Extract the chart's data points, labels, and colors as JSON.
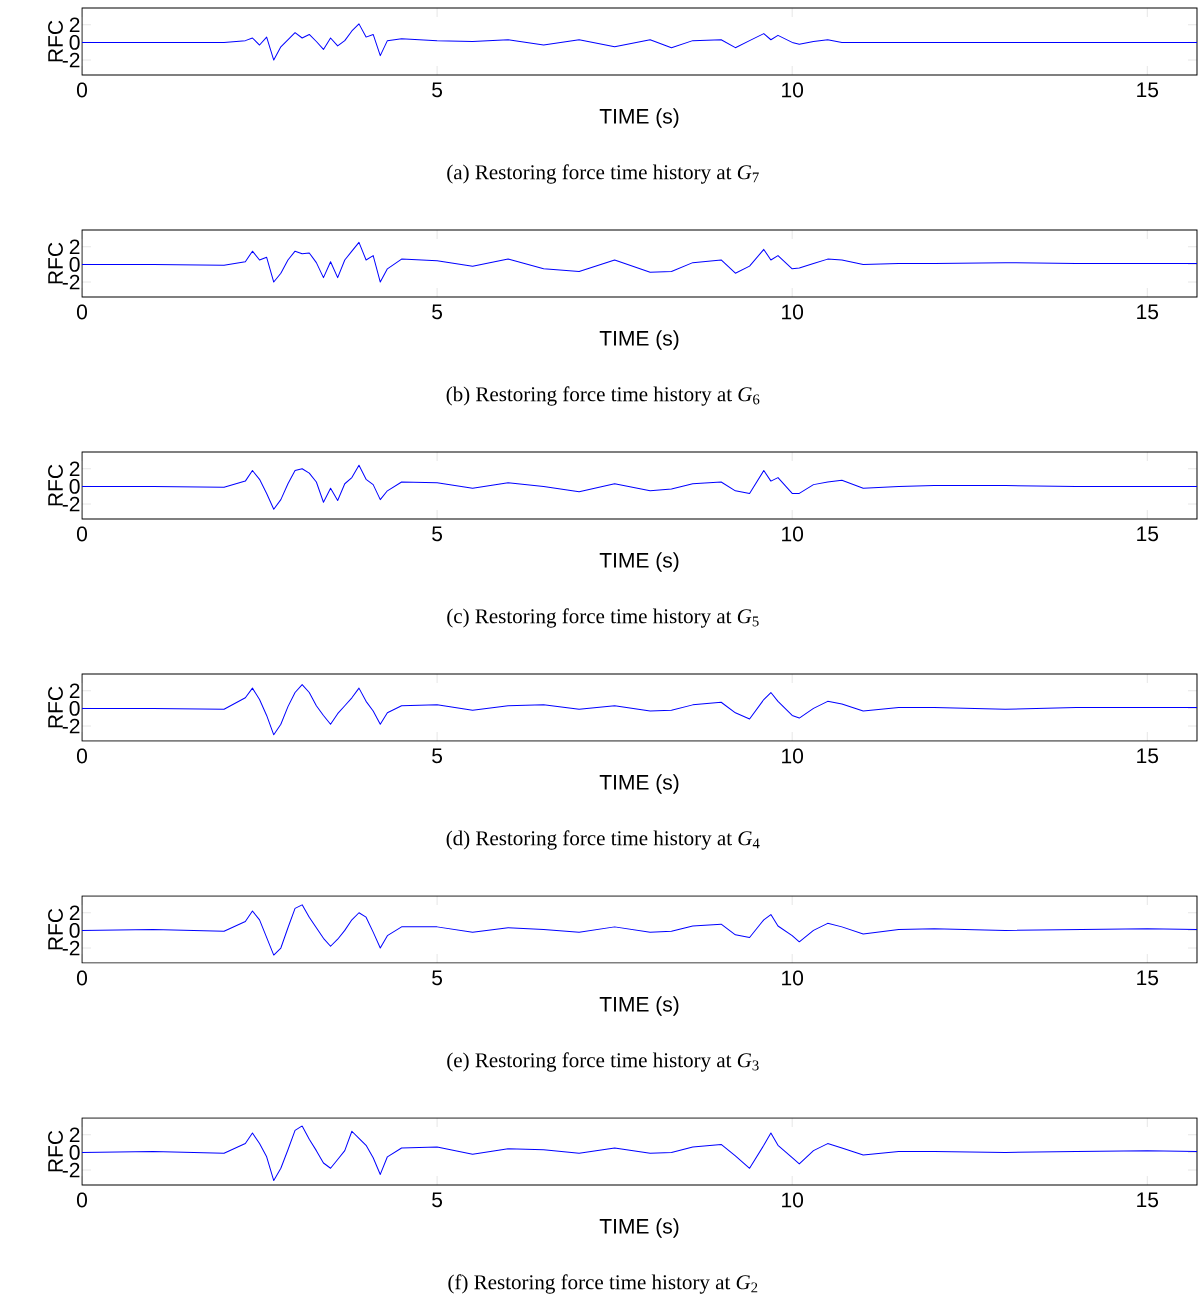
{
  "chart_data": [
    {
      "type": "line",
      "xlabel": "TIME (s)",
      "ylabel": "RFC",
      "annotations": [
        "(a) Restoring force time history at *G*$_{7}$"
      ],
      "xlim": [
        0,
        15.7
      ],
      "ylim": [
        -3.7,
        3.9
      ],
      "xticks": [
        0,
        5,
        10,
        15
      ],
      "yticks": [
        -2,
        0,
        2
      ],
      "x": [
        0,
        1,
        2,
        2.3,
        2.4,
        2.5,
        2.6,
        2.7,
        2.8,
        2.9,
        3.0,
        3.1,
        3.2,
        3.3,
        3.4,
        3.5,
        3.6,
        3.7,
        3.8,
        3.9,
        4.0,
        4.1,
        4.2,
        4.3,
        4.5,
        5,
        5.5,
        6,
        6.5,
        7,
        7.5,
        8,
        8.3,
        8.6,
        9,
        9.2,
        9.4,
        9.6,
        9.7,
        9.8,
        10,
        10.1,
        10.3,
        10.5,
        10.7,
        11,
        11.5,
        12,
        13,
        14,
        15,
        15.7
      ],
      "series": [
        {
          "color": "#0000ff",
          "values": [
            0,
            0,
            0,
            0.2,
            0.5,
            -0.3,
            0.6,
            -2.0,
            -0.5,
            0.3,
            1.1,
            0.5,
            0.9,
            0.1,
            -0.8,
            0.5,
            -0.4,
            0.2,
            1.3,
            2.1,
            0.6,
            0.9,
            -1.5,
            0.2,
            0.4,
            0.2,
            0.1,
            0.3,
            -0.3,
            0.3,
            -0.5,
            0.3,
            -0.6,
            0.2,
            0.3,
            -0.6,
            0.2,
            1.0,
            0.3,
            0.8,
            0,
            -0.2,
            0.1,
            0.3,
            0,
            0,
            0,
            0,
            0,
            0,
            0,
            0
          ]
        }
      ]
    },
    {
      "type": "line",
      "xlabel": "TIME (s)",
      "ylabel": "RFC",
      "annotations": [
        "(b) Restoring force time history at *G*$_{6}$"
      ],
      "xlim": [
        0,
        15.7
      ],
      "ylim": [
        -3.7,
        3.9
      ],
      "xticks": [
        0,
        5,
        10,
        15
      ],
      "yticks": [
        -2,
        0,
        2
      ],
      "x": [
        0,
        1,
        2,
        2.3,
        2.4,
        2.5,
        2.6,
        2.7,
        2.8,
        2.9,
        3.0,
        3.1,
        3.2,
        3.3,
        3.4,
        3.5,
        3.6,
        3.7,
        3.8,
        3.9,
        4.0,
        4.1,
        4.2,
        4.3,
        4.5,
        5,
        5.5,
        6,
        6.5,
        7,
        7.5,
        8,
        8.3,
        8.6,
        9,
        9.2,
        9.4,
        9.6,
        9.7,
        9.8,
        10,
        10.1,
        10.3,
        10.5,
        10.7,
        11,
        11.5,
        12,
        13,
        14,
        15,
        15.7
      ],
      "series": [
        {
          "color": "#0000ff",
          "values": [
            0,
            0,
            -0.1,
            0.3,
            1.5,
            0.5,
            0.8,
            -2.0,
            -1.0,
            0.5,
            1.5,
            1.2,
            1.3,
            0.2,
            -1.5,
            0.3,
            -1.5,
            0.5,
            1.5,
            2.5,
            0.5,
            1.0,
            -2.0,
            -0.5,
            0.6,
            0.4,
            -0.2,
            0.6,
            -0.5,
            -0.8,
            0.5,
            -0.9,
            -0.8,
            0.2,
            0.5,
            -1.0,
            -0.2,
            1.7,
            0.5,
            1.0,
            -0.5,
            -0.4,
            0.1,
            0.6,
            0.5,
            0.0,
            0.1,
            0.1,
            0.2,
            0.1,
            0.1,
            0.1
          ]
        }
      ]
    },
    {
      "type": "line",
      "xlabel": "TIME (s)",
      "ylabel": "RFC",
      "annotations": [
        "(c) Restoring force time history at *G*$_{5}$"
      ],
      "xlim": [
        0,
        15.7
      ],
      "ylim": [
        -3.7,
        3.9
      ],
      "xticks": [
        0,
        5,
        10,
        15
      ],
      "yticks": [
        -2,
        0,
        2
      ],
      "x": [
        0,
        1,
        2,
        2.3,
        2.4,
        2.5,
        2.6,
        2.7,
        2.8,
        2.9,
        3.0,
        3.1,
        3.2,
        3.3,
        3.4,
        3.5,
        3.6,
        3.7,
        3.8,
        3.9,
        4.0,
        4.1,
        4.2,
        4.3,
        4.5,
        5,
        5.5,
        6,
        6.5,
        7,
        7.5,
        8,
        8.3,
        8.6,
        9,
        9.2,
        9.4,
        9.6,
        9.7,
        9.8,
        10,
        10.1,
        10.3,
        10.5,
        10.7,
        11,
        11.5,
        12,
        13,
        14,
        15,
        15.7
      ],
      "series": [
        {
          "color": "#0000ff",
          "values": [
            0,
            0,
            -0.1,
            0.6,
            1.8,
            0.8,
            -0.8,
            -2.6,
            -1.5,
            0.3,
            1.8,
            2.0,
            1.5,
            0.5,
            -1.8,
            -0.2,
            -1.6,
            0.3,
            1.0,
            2.4,
            0.8,
            0.2,
            -1.5,
            -0.5,
            0.5,
            0.4,
            -0.2,
            0.4,
            0.0,
            -0.6,
            0.3,
            -0.5,
            -0.3,
            0.3,
            0.5,
            -0.5,
            -0.8,
            1.8,
            0.6,
            1.0,
            -0.8,
            -0.8,
            0.2,
            0.5,
            0.7,
            -0.2,
            0,
            0.1,
            0.1,
            0,
            0,
            0
          ]
        }
      ]
    },
    {
      "type": "line",
      "xlabel": "TIME (s)",
      "ylabel": "RFC",
      "annotations": [
        "(d) Restoring force time history at *G*$_{4}$"
      ],
      "xlim": [
        0,
        15.7
      ],
      "ylim": [
        -3.7,
        3.9
      ],
      "xticks": [
        0,
        5,
        10,
        15
      ],
      "yticks": [
        -2,
        0,
        2
      ],
      "x": [
        0,
        1,
        2,
        2.3,
        2.4,
        2.5,
        2.6,
        2.7,
        2.8,
        2.9,
        3.0,
        3.1,
        3.2,
        3.3,
        3.4,
        3.5,
        3.6,
        3.7,
        3.8,
        3.9,
        4.0,
        4.1,
        4.2,
        4.3,
        4.5,
        5,
        5.5,
        6,
        6.5,
        7,
        7.5,
        8,
        8.3,
        8.6,
        9,
        9.2,
        9.4,
        9.6,
        9.7,
        9.8,
        10,
        10.1,
        10.3,
        10.5,
        10.7,
        11,
        11.5,
        12,
        13,
        14,
        15,
        15.7
      ],
      "series": [
        {
          "color": "#0000ff",
          "values": [
            0,
            0,
            -0.1,
            1.2,
            2.3,
            1.0,
            -0.8,
            -3.0,
            -1.8,
            0.2,
            1.8,
            2.7,
            1.8,
            0.3,
            -0.8,
            -1.8,
            -0.6,
            0.3,
            1.2,
            2.3,
            0.8,
            -0.3,
            -1.8,
            -0.5,
            0.3,
            0.4,
            -0.2,
            0.3,
            0.4,
            -0.1,
            0.3,
            -0.3,
            -0.2,
            0.4,
            0.7,
            -0.5,
            -1.2,
            1.0,
            1.8,
            0.8,
            -0.8,
            -1.1,
            0.0,
            0.8,
            0.5,
            -0.3,
            0.1,
            0.1,
            -0.1,
            0.1,
            0.1,
            0.1
          ]
        }
      ]
    },
    {
      "type": "line",
      "xlabel": "TIME (s)",
      "ylabel": "RFC",
      "annotations": [
        "(e) Restoring force time history at *G*$_{3}$"
      ],
      "xlim": [
        0,
        15.7
      ],
      "ylim": [
        -3.7,
        3.9
      ],
      "xticks": [
        0,
        5,
        10,
        15
      ],
      "yticks": [
        -2,
        0,
        2
      ],
      "x": [
        0,
        1,
        2,
        2.3,
        2.4,
        2.5,
        2.6,
        2.7,
        2.8,
        2.9,
        3.0,
        3.1,
        3.2,
        3.3,
        3.4,
        3.5,
        3.6,
        3.7,
        3.8,
        3.9,
        4.0,
        4.1,
        4.2,
        4.3,
        4.5,
        5,
        5.5,
        6,
        6.5,
        7,
        7.5,
        8,
        8.3,
        8.6,
        9,
        9.2,
        9.4,
        9.6,
        9.7,
        9.8,
        10,
        10.1,
        10.3,
        10.5,
        10.7,
        11,
        11.5,
        12,
        13,
        14,
        15,
        15.7
      ],
      "series": [
        {
          "color": "#0000ff",
          "values": [
            0,
            0.1,
            -0.1,
            1.0,
            2.2,
            1.2,
            -0.8,
            -2.8,
            -2.0,
            0.3,
            2.5,
            2.9,
            1.5,
            0.3,
            -0.9,
            -1.8,
            -1.0,
            0,
            1.2,
            2.0,
            1.5,
            -0.2,
            -2.0,
            -0.6,
            0.4,
            0.4,
            -0.2,
            0.3,
            0.1,
            -0.2,
            0.4,
            -0.2,
            -0.1,
            0.5,
            0.7,
            -0.5,
            -0.8,
            1.2,
            1.8,
            0.5,
            -0.6,
            -1.3,
            0.0,
            0.8,
            0.4,
            -0.4,
            0.1,
            0.2,
            0,
            0.1,
            0.2,
            0.1
          ]
        }
      ]
    },
    {
      "type": "line",
      "xlabel": "TIME (s)",
      "ylabel": "RFC",
      "annotations": [
        "(f) Restoring force time history at *G*$_{2}$"
      ],
      "xlim": [
        0,
        15.7
      ],
      "ylim": [
        -3.7,
        3.9
      ],
      "xticks": [
        0,
        5,
        10,
        15
      ],
      "yticks": [
        -2,
        0,
        2
      ],
      "x": [
        0,
        1,
        2,
        2.3,
        2.4,
        2.5,
        2.6,
        2.7,
        2.8,
        2.9,
        3.0,
        3.1,
        3.2,
        3.3,
        3.4,
        3.5,
        3.6,
        3.7,
        3.8,
        3.9,
        4.0,
        4.1,
        4.2,
        4.3,
        4.5,
        5,
        5.5,
        6,
        6.5,
        7,
        7.5,
        8,
        8.3,
        8.6,
        9,
        9.2,
        9.4,
        9.6,
        9.7,
        9.8,
        10,
        10.1,
        10.3,
        10.5,
        10.7,
        11,
        11.5,
        12,
        13,
        14,
        15,
        15.7
      ],
      "series": [
        {
          "color": "#0000ff",
          "values": [
            0,
            0.1,
            -0.1,
            1.0,
            2.2,
            1.0,
            -0.5,
            -3.2,
            -1.8,
            0.3,
            2.5,
            3.0,
            1.5,
            0.2,
            -1.2,
            -1.8,
            -0.8,
            0.2,
            2.4,
            1.6,
            0.8,
            -0.6,
            -2.5,
            -0.5,
            0.5,
            0.6,
            -0.2,
            0.4,
            0.3,
            -0.1,
            0.5,
            -0.1,
            0.0,
            0.6,
            0.9,
            -0.4,
            -1.8,
            0.8,
            2.2,
            0.8,
            -0.6,
            -1.3,
            0.2,
            1.0,
            0.5,
            -0.3,
            0.1,
            0.1,
            0.0,
            0.1,
            0.2,
            0.1
          ]
        }
      ]
    }
  ]
}
